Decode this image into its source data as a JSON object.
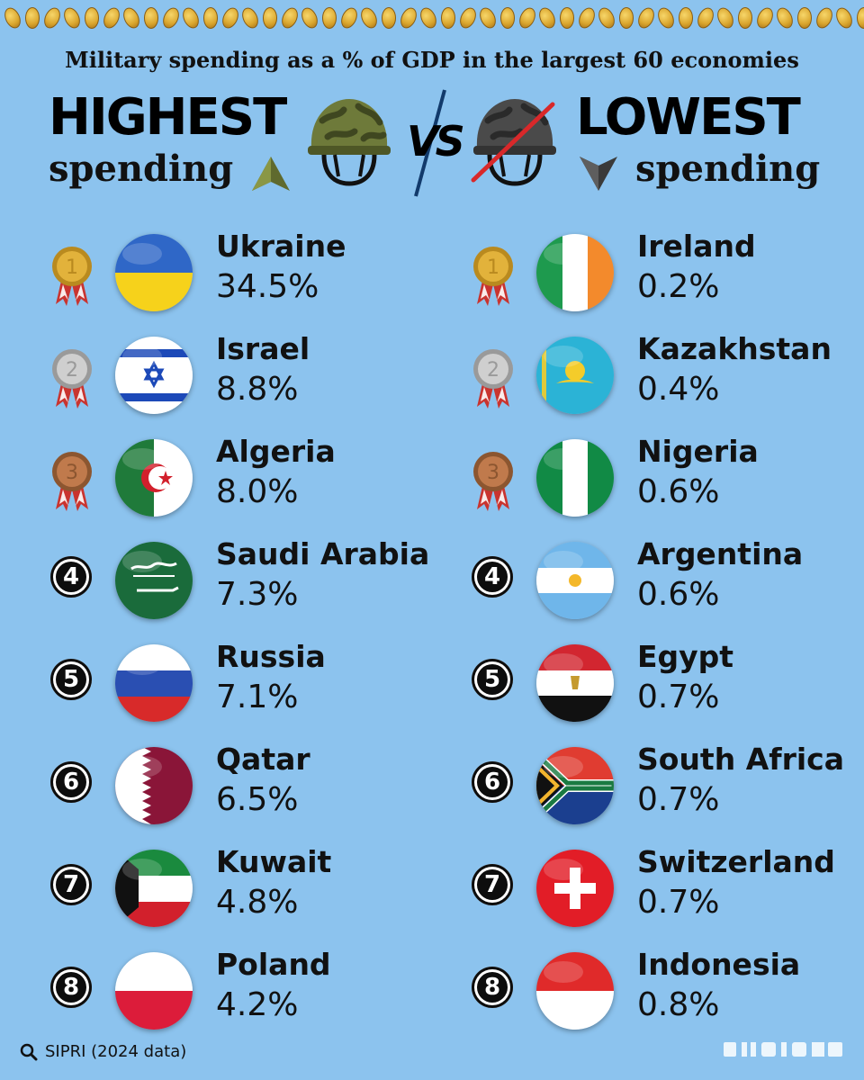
{
  "subtitle": "Military spending as a % of GDP in the largest 60 economies",
  "left_header": {
    "big": "HIGHEST",
    "small": "spending"
  },
  "right_header": {
    "big": "LOWEST",
    "small": "spending"
  },
  "vs_label": "VS",
  "source": "SIPRI (2024 data)",
  "highest": [
    {
      "rank": "1",
      "country": "Ukraine",
      "value": "34.5%",
      "flag": "ukraine"
    },
    {
      "rank": "2",
      "country": "Israel",
      "value": "8.8%",
      "flag": "israel"
    },
    {
      "rank": "3",
      "country": "Algeria",
      "value": "8.0%",
      "flag": "algeria"
    },
    {
      "rank": "4",
      "country": "Saudi Arabia",
      "value": "7.3%",
      "flag": "saudi"
    },
    {
      "rank": "5",
      "country": "Russia",
      "value": "7.1%",
      "flag": "russia"
    },
    {
      "rank": "6",
      "country": "Qatar",
      "value": "6.5%",
      "flag": "qatar"
    },
    {
      "rank": "7",
      "country": "Kuwait",
      "value": "4.8%",
      "flag": "kuwait"
    },
    {
      "rank": "8",
      "country": "Poland",
      "value": "4.2%",
      "flag": "poland"
    }
  ],
  "lowest": [
    {
      "rank": "1",
      "country": "Ireland",
      "value": "0.2%",
      "flag": "ireland"
    },
    {
      "rank": "2",
      "country": "Kazakhstan",
      "value": "0.4%",
      "flag": "kazakhstan"
    },
    {
      "rank": "3",
      "country": "Nigeria",
      "value": "0.6%",
      "flag": "nigeria"
    },
    {
      "rank": "4",
      "country": "Argentina",
      "value": "0.6%",
      "flag": "argentina"
    },
    {
      "rank": "5",
      "country": "Egypt",
      "value": "0.7%",
      "flag": "egypt"
    },
    {
      "rank": "6",
      "country": "South Africa",
      "value": "0.7%",
      "flag": "southafrica"
    },
    {
      "rank": "7",
      "country": "Switzerland",
      "value": "0.7%",
      "flag": "switzerland"
    },
    {
      "rank": "8",
      "country": "Indonesia",
      "value": "0.8%",
      "flag": "indonesia"
    }
  ],
  "colors": {
    "background": "#8cc3ee",
    "gold": "#e2b23b",
    "silver": "#c9c9c9",
    "bronze": "#c07a4c",
    "helmet_green": "#6e7a3a",
    "strike_red": "#d8282a"
  },
  "icons": {
    "top_strip": "coin-icon",
    "left_header": "helmet-icon",
    "right_header": "crossed-out-helmet-icon",
    "up_arrow": "up-arrow-icon",
    "down_arrow": "down-arrow-icon",
    "source": "magnifier-icon",
    "medals": [
      "gold-medal-icon",
      "silver-medal-icon",
      "bronze-medal-icon"
    ]
  }
}
